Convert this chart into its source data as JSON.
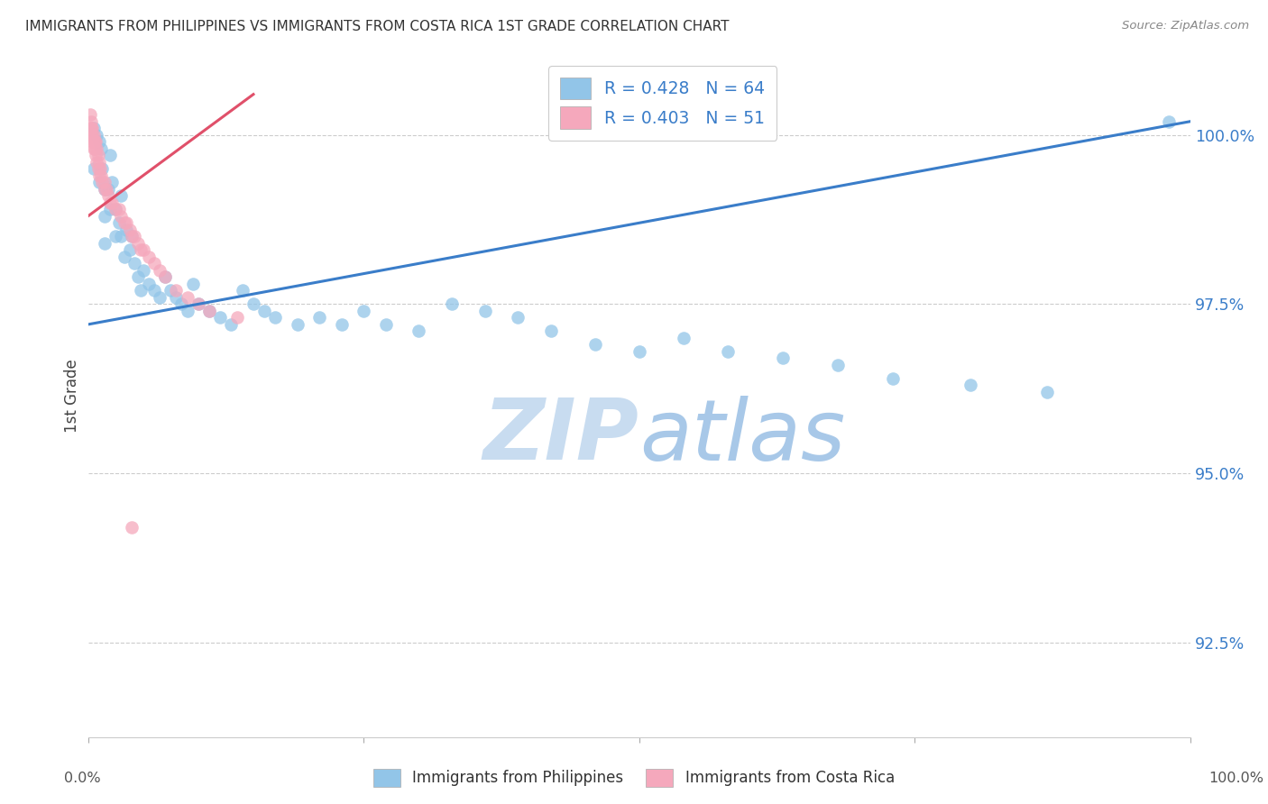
{
  "title": "IMMIGRANTS FROM PHILIPPINES VS IMMIGRANTS FROM COSTA RICA 1ST GRADE CORRELATION CHART",
  "source": "Source: ZipAtlas.com",
  "ylabel": "1st Grade",
  "legend_blue_label": "Immigrants from Philippines",
  "legend_pink_label": "Immigrants from Costa Rica",
  "R_blue": 0.428,
  "N_blue": 64,
  "R_pink": 0.403,
  "N_pink": 51,
  "color_blue": "#92C5E8",
  "color_pink": "#F5A8BC",
  "color_blue_line": "#3A7DC9",
  "color_pink_line": "#E0506A",
  "color_blue_text": "#3A7DC9",
  "ytick_labels": [
    "92.5%",
    "95.0%",
    "97.5%",
    "100.0%"
  ],
  "ytick_values": [
    0.925,
    0.95,
    0.975,
    1.0
  ],
  "xmin": 0.0,
  "xmax": 1.0,
  "ymin": 0.911,
  "ymax": 1.012,
  "blue_x": [
    0.005,
    0.005,
    0.008,
    0.01,
    0.01,
    0.012,
    0.013,
    0.015,
    0.015,
    0.015,
    0.018,
    0.02,
    0.02,
    0.022,
    0.025,
    0.025,
    0.028,
    0.03,
    0.03,
    0.033,
    0.035,
    0.038,
    0.04,
    0.042,
    0.045,
    0.048,
    0.05,
    0.055,
    0.06,
    0.065,
    0.07,
    0.075,
    0.08,
    0.085,
    0.09,
    0.095,
    0.1,
    0.11,
    0.12,
    0.13,
    0.14,
    0.15,
    0.16,
    0.17,
    0.19,
    0.21,
    0.23,
    0.25,
    0.27,
    0.3,
    0.33,
    0.36,
    0.39,
    0.42,
    0.46,
    0.5,
    0.54,
    0.58,
    0.63,
    0.68,
    0.73,
    0.8,
    0.87,
    0.98
  ],
  "blue_y": [
    1.001,
    0.995,
    1.0,
    0.999,
    0.993,
    0.998,
    0.995,
    0.992,
    0.988,
    0.984,
    0.992,
    0.997,
    0.989,
    0.993,
    0.989,
    0.985,
    0.987,
    0.991,
    0.985,
    0.982,
    0.986,
    0.983,
    0.985,
    0.981,
    0.979,
    0.977,
    0.98,
    0.978,
    0.977,
    0.976,
    0.979,
    0.977,
    0.976,
    0.975,
    0.974,
    0.978,
    0.975,
    0.974,
    0.973,
    0.972,
    0.977,
    0.975,
    0.974,
    0.973,
    0.972,
    0.973,
    0.972,
    0.974,
    0.972,
    0.971,
    0.975,
    0.974,
    0.973,
    0.971,
    0.969,
    0.968,
    0.97,
    0.968,
    0.967,
    0.966,
    0.964,
    0.963,
    0.962,
    1.002
  ],
  "pink_x": [
    0.002,
    0.002,
    0.003,
    0.003,
    0.003,
    0.004,
    0.004,
    0.004,
    0.005,
    0.005,
    0.005,
    0.006,
    0.006,
    0.007,
    0.007,
    0.008,
    0.008,
    0.009,
    0.009,
    0.01,
    0.01,
    0.011,
    0.012,
    0.013,
    0.015,
    0.015,
    0.017,
    0.018,
    0.02,
    0.022,
    0.025,
    0.028,
    0.03,
    0.033,
    0.035,
    0.038,
    0.04,
    0.042,
    0.045,
    0.048,
    0.05,
    0.055,
    0.06,
    0.065,
    0.07,
    0.08,
    0.09,
    0.1,
    0.11,
    0.135,
    0.04
  ],
  "pink_y": [
    1.003,
    1.001,
    1.002,
    1.001,
    1.0,
    1.001,
    1.0,
    0.999,
    1.0,
    0.999,
    0.998,
    0.999,
    0.998,
    0.999,
    0.997,
    0.998,
    0.996,
    0.997,
    0.995,
    0.996,
    0.994,
    0.995,
    0.994,
    0.993,
    0.993,
    0.992,
    0.992,
    0.991,
    0.99,
    0.99,
    0.989,
    0.989,
    0.988,
    0.987,
    0.987,
    0.986,
    0.985,
    0.985,
    0.984,
    0.983,
    0.983,
    0.982,
    0.981,
    0.98,
    0.979,
    0.977,
    0.976,
    0.975,
    0.974,
    0.973,
    0.942
  ],
  "blue_trend_x": [
    0.0,
    1.0
  ],
  "blue_trend_y": [
    0.972,
    1.002
  ],
  "pink_trend_x": [
    0.0,
    0.15
  ],
  "pink_trend_y": [
    0.988,
    1.006
  ],
  "watermark_zip": "ZIP",
  "watermark_atlas": "atlas",
  "watermark_color_zip": "#C8DCF0",
  "watermark_color_atlas": "#A8C8E8",
  "background_color": "#FFFFFF"
}
